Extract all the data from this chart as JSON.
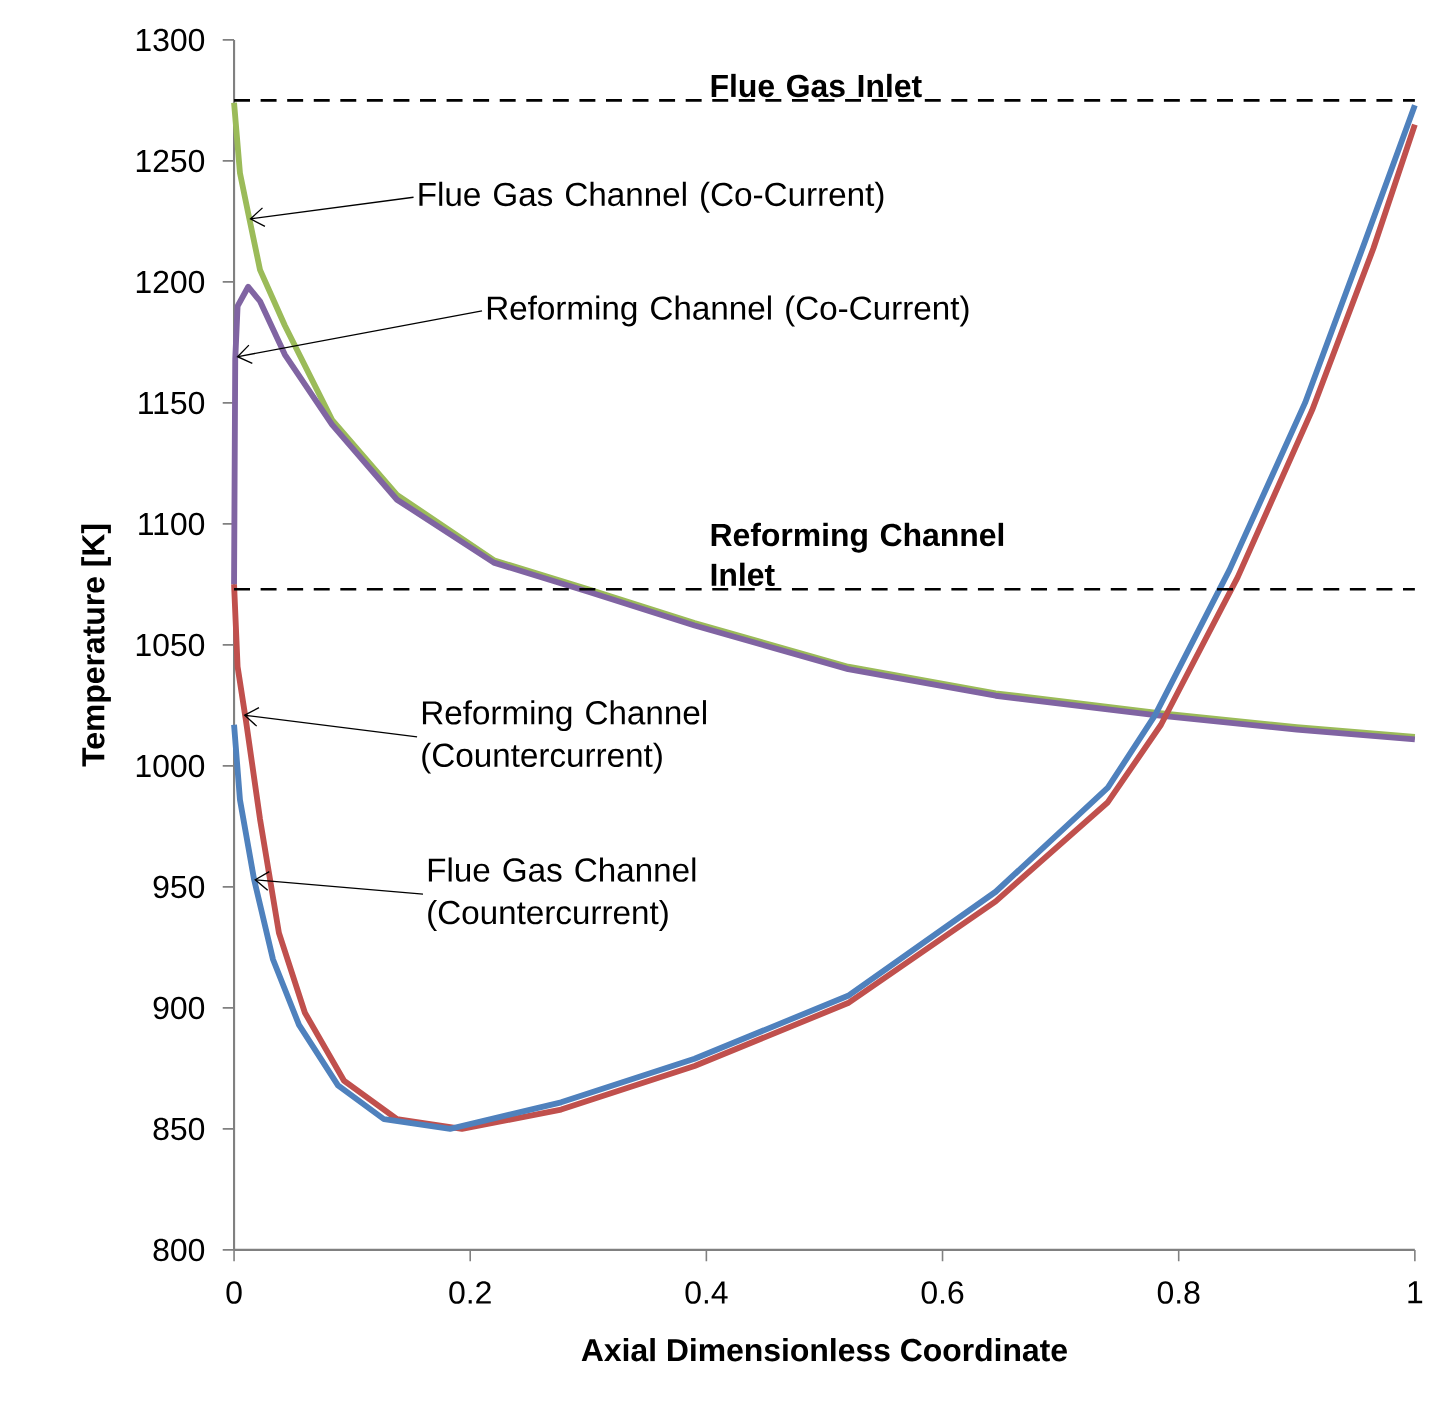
{
  "chart_data": {
    "type": "line",
    "xlabel": "Axial Dimensionless Coordinate",
    "ylabel": "Temperature [K]",
    "xlim": [
      0,
      1
    ],
    "ylim": [
      800,
      1300
    ],
    "xticks": [
      0,
      0.2,
      0.4,
      0.6,
      0.8,
      1
    ],
    "yticks": [
      800,
      850,
      900,
      950,
      1000,
      1050,
      1100,
      1150,
      1200,
      1250,
      1300
    ],
    "grid": false,
    "series": [
      {
        "color": "#9bbb59",
        "x": [
          0,
          0.005,
          0.013,
          0.022,
          0.043,
          0.083,
          0.138,
          0.22,
          0.3,
          0.39,
          0.52,
          0.645,
          0.78,
          0.9,
          1
        ],
        "values": [
          1274,
          1245,
          1226,
          1205,
          1182,
          1143,
          1112,
          1085,
          1073,
          1059,
          1041,
          1030,
          1022,
          1016,
          1012
        ]
      },
      {
        "color": "#8064a2",
        "x": [
          0,
          0.001,
          0.003,
          0.012,
          0.022,
          0.043,
          0.083,
          0.138,
          0.22,
          0.3,
          0.39,
          0.52,
          0.645,
          0.78,
          0.9,
          1
        ],
        "values": [
          1075,
          1168,
          1190,
          1198,
          1192,
          1170,
          1141,
          1110,
          1084,
          1072,
          1058,
          1040,
          1029,
          1021,
          1015,
          1011
        ]
      },
      {
        "color": "#c0504d",
        "x": [
          0,
          0.003,
          0.01,
          0.022,
          0.038,
          0.06,
          0.093,
          0.138,
          0.193,
          0.277,
          0.39,
          0.52,
          0.645,
          0.74,
          0.785,
          0.85,
          0.913,
          0.965,
          1
        ],
        "values": [
          1075,
          1041,
          1019,
          978,
          931,
          898,
          870,
          854,
          850,
          858,
          876,
          902,
          944,
          985,
          1017,
          1078,
          1147,
          1214,
          1265
        ]
      },
      {
        "color": "#4f81bd",
        "x": [
          0,
          0.005,
          0.017,
          0.033,
          0.055,
          0.088,
          0.127,
          0.183,
          0.277,
          0.39,
          0.52,
          0.645,
          0.74,
          0.78,
          0.843,
          0.907,
          0.958,
          1
        ],
        "values": [
          1017,
          986,
          953,
          920,
          893,
          868,
          854,
          850,
          861,
          879,
          905,
          948,
          991,
          1021,
          1081,
          1150,
          1217,
          1273
        ]
      }
    ],
    "ref_lines": [
      {
        "axis": "y",
        "value": 1275,
        "label": "Flue Gas Inlet",
        "color": "#000000",
        "line_style": "dashed"
      },
      {
        "axis": "y",
        "value": 1073,
        "label": "Reforming Channel Inlet",
        "color": "#000000",
        "line_style": "dashed"
      }
    ],
    "annotations": [
      {
        "text": "Flue Gas Channel (Co-Current)",
        "x": 0.013,
        "y": 1226
      },
      {
        "text": "Reforming Channel (Co-Current)",
        "x": 0.002,
        "y": 1169
      },
      {
        "text": "Reforming Channel (Countercurrent)",
        "x": 0.008,
        "y": 1021
      },
      {
        "text": "Flue Gas Channel (Countercurrent)",
        "x": 0.017,
        "y": 953
      }
    ]
  }
}
